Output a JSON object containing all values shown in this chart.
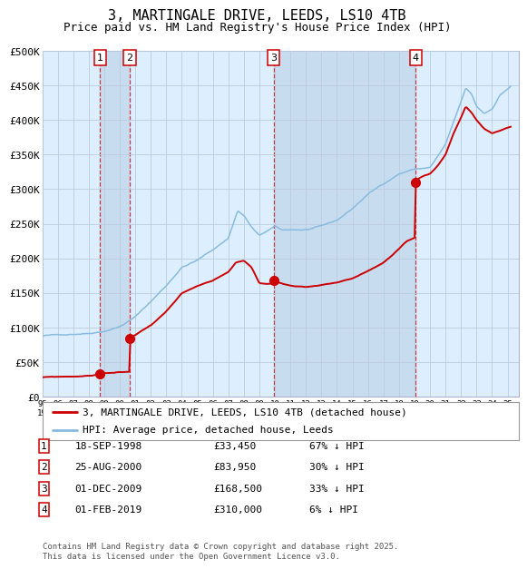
{
  "title": "3, MARTINGALE DRIVE, LEEDS, LS10 4TB",
  "subtitle": "Price paid vs. HM Land Registry's House Price Index (HPI)",
  "title_fontsize": 11,
  "subtitle_fontsize": 9,
  "background_color": "#ffffff",
  "plot_bg_color": "#ddeeff",
  "grid_color": "#bbccdd",
  "hpi_line_color": "#88bbdd",
  "price_line_color": "#cc0000",
  "sale_marker_color": "#cc0000",
  "sale_marker_size": 7,
  "ylim": [
    0,
    500000
  ],
  "yticks": [
    0,
    50000,
    100000,
    150000,
    200000,
    250000,
    300000,
    350000,
    400000,
    450000,
    500000
  ],
  "ytick_labels": [
    "£0",
    "£50K",
    "£100K",
    "£150K",
    "£200K",
    "£250K",
    "£300K",
    "£350K",
    "£400K",
    "£450K",
    "£500K"
  ],
  "xlim_start": 1995.0,
  "xlim_end": 2025.7,
  "xticks": [
    1995,
    1996,
    1997,
    1998,
    1999,
    2000,
    2001,
    2002,
    2003,
    2004,
    2005,
    2006,
    2007,
    2008,
    2009,
    2010,
    2011,
    2012,
    2013,
    2014,
    2015,
    2016,
    2017,
    2018,
    2019,
    2020,
    2021,
    2022,
    2023,
    2024,
    2025
  ],
  "sales": [
    {
      "num": 1,
      "date": "18-SEP-1998",
      "year": 1998.72,
      "price": 33450,
      "pct": "67%",
      "dir": "↓"
    },
    {
      "num": 2,
      "date": "25-AUG-2000",
      "year": 2000.65,
      "price": 83950,
      "pct": "30%",
      "dir": "↓"
    },
    {
      "num": 3,
      "date": "01-DEC-2009",
      "year": 2009.92,
      "price": 168500,
      "pct": "33%",
      "dir": "↓"
    },
    {
      "num": 4,
      "date": "01-FEB-2019",
      "year": 2019.08,
      "price": 310000,
      "pct": "6%",
      "dir": "↓"
    }
  ],
  "legend_line1": "3, MARTINGALE DRIVE, LEEDS, LS10 4TB (detached house)",
  "legend_line2": "HPI: Average price, detached house, Leeds",
  "footer1": "Contains HM Land Registry data © Crown copyright and database right 2025.",
  "footer2": "This data is licensed under the Open Government Licence v3.0.",
  "table_rows": [
    {
      "num": 1,
      "date": "18-SEP-1998",
      "price": "£33,450",
      "pct": "67% ↓ HPI"
    },
    {
      "num": 2,
      "date": "25-AUG-2000",
      "price": "£83,950",
      "pct": "30% ↓ HPI"
    },
    {
      "num": 3,
      "date": "01-DEC-2009",
      "price": "£168,500",
      "pct": "33% ↓ HPI"
    },
    {
      "num": 4,
      "date": "01-FEB-2019",
      "price": "£310,000",
      "pct": "6% ↓ HPI"
    }
  ],
  "hpi_anchors": [
    [
      1995.0,
      88000
    ],
    [
      1996.0,
      89000
    ],
    [
      1997.0,
      91000
    ],
    [
      1998.0,
      93000
    ],
    [
      1999.0,
      97000
    ],
    [
      2000.0,
      104000
    ],
    [
      2001.0,
      118000
    ],
    [
      2002.0,
      140000
    ],
    [
      2003.0,
      163000
    ],
    [
      2004.0,
      190000
    ],
    [
      2005.0,
      200000
    ],
    [
      2006.0,
      215000
    ],
    [
      2007.0,
      232000
    ],
    [
      2007.6,
      272000
    ],
    [
      2008.0,
      265000
    ],
    [
      2008.5,
      248000
    ],
    [
      2009.0,
      235000
    ],
    [
      2009.5,
      242000
    ],
    [
      2010.0,
      248000
    ],
    [
      2010.5,
      242000
    ],
    [
      2011.0,
      243000
    ],
    [
      2012.0,
      243000
    ],
    [
      2013.0,
      247000
    ],
    [
      2014.0,
      255000
    ],
    [
      2015.0,
      272000
    ],
    [
      2016.0,
      293000
    ],
    [
      2017.0,
      308000
    ],
    [
      2018.0,
      323000
    ],
    [
      2019.0,
      330000
    ],
    [
      2020.0,
      332000
    ],
    [
      2020.5,
      348000
    ],
    [
      2021.0,
      365000
    ],
    [
      2021.5,
      395000
    ],
    [
      2022.0,
      425000
    ],
    [
      2022.3,
      445000
    ],
    [
      2022.7,
      435000
    ],
    [
      2023.0,
      418000
    ],
    [
      2023.5,
      408000
    ],
    [
      2024.0,
      415000
    ],
    [
      2024.5,
      435000
    ],
    [
      2025.2,
      448000
    ]
  ],
  "price_anchors": [
    [
      1995.0,
      28000
    ],
    [
      1996.0,
      28500
    ],
    [
      1997.0,
      29000
    ],
    [
      1998.0,
      30000
    ],
    [
      1998.71,
      32000
    ],
    [
      1998.72,
      33450
    ],
    [
      1998.73,
      33450
    ],
    [
      1999.0,
      34000
    ],
    [
      1999.5,
      34500
    ],
    [
      2000.0,
      35000
    ],
    [
      2000.64,
      35500
    ],
    [
      2000.65,
      83950
    ],
    [
      2000.66,
      83950
    ],
    [
      2001.0,
      89000
    ],
    [
      2002.0,
      103000
    ],
    [
      2003.0,
      123000
    ],
    [
      2004.0,
      148000
    ],
    [
      2005.0,
      158000
    ],
    [
      2006.0,
      165000
    ],
    [
      2007.0,
      178000
    ],
    [
      2007.5,
      192000
    ],
    [
      2008.0,
      195000
    ],
    [
      2008.5,
      185000
    ],
    [
      2009.0,
      162000
    ],
    [
      2009.5,
      161000
    ],
    [
      2009.91,
      162000
    ],
    [
      2009.92,
      168500
    ],
    [
      2009.93,
      168500
    ],
    [
      2010.0,
      166000
    ],
    [
      2010.5,
      162000
    ],
    [
      2011.0,
      160000
    ],
    [
      2012.0,
      158000
    ],
    [
      2013.0,
      161000
    ],
    [
      2014.0,
      164000
    ],
    [
      2015.0,
      170000
    ],
    [
      2016.0,
      181000
    ],
    [
      2017.0,
      193000
    ],
    [
      2017.5,
      202000
    ],
    [
      2018.0,
      212000
    ],
    [
      2018.5,
      222000
    ],
    [
      2019.07,
      228000
    ],
    [
      2019.08,
      310000
    ],
    [
      2019.09,
      310000
    ],
    [
      2019.5,
      316000
    ],
    [
      2020.0,
      320000
    ],
    [
      2020.5,
      332000
    ],
    [
      2021.0,
      348000
    ],
    [
      2021.5,
      378000
    ],
    [
      2022.0,
      402000
    ],
    [
      2022.3,
      418000
    ],
    [
      2022.7,
      408000
    ],
    [
      2023.0,
      398000
    ],
    [
      2023.5,
      385000
    ],
    [
      2024.0,
      378000
    ],
    [
      2024.5,
      382000
    ],
    [
      2025.2,
      388000
    ]
  ]
}
